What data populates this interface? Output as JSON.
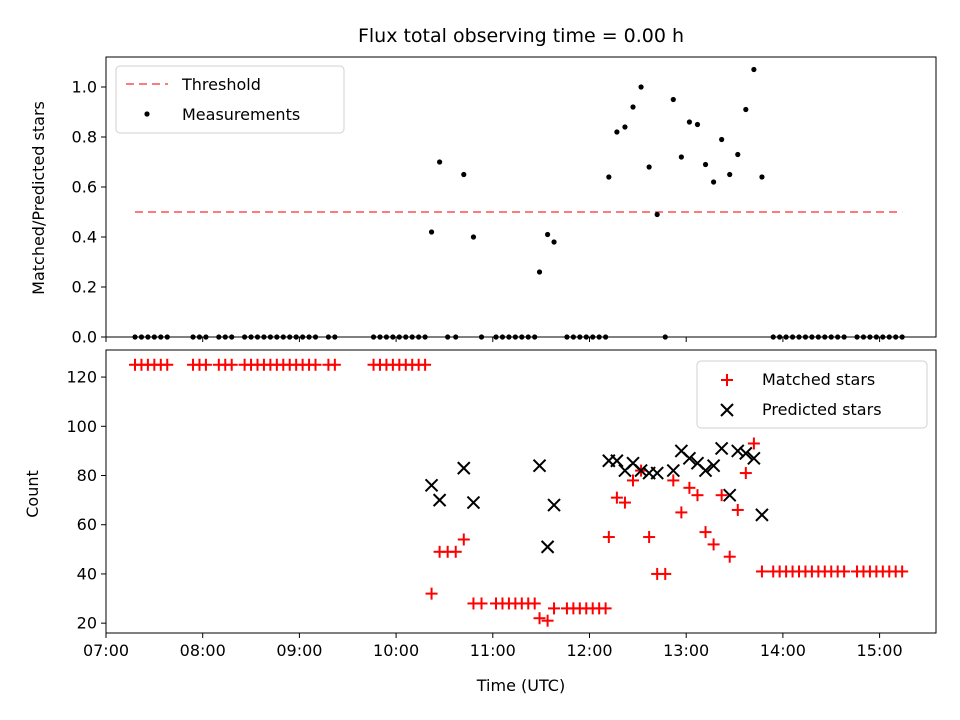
{
  "chart_data": [
    {
      "type": "scatter",
      "title": "Flux total observing time = 0.00 h",
      "xlabel": "",
      "ylabel": "Matched/Predicted stars",
      "xlim": [
        "07:00",
        "15:35"
      ],
      "ylim": [
        0,
        1.12
      ],
      "yticks": [
        0.0,
        0.2,
        0.4,
        0.6,
        0.8,
        1.0
      ],
      "ytick_labels": [
        "0.0",
        "0.2",
        "0.4",
        "0.6",
        "0.8",
        "1.0"
      ],
      "legend_position": "top-left",
      "threshold": {
        "name": "Threshold",
        "value": 0.5,
        "x_start": "07:18",
        "x_end": "15:14",
        "color": "#ff7a7a",
        "style": "dashed"
      },
      "series": [
        {
          "name": "Measurements",
          "color": "#000000",
          "marker": "dot",
          "points": [
            [
              "07:18",
              0
            ],
            [
              "07:22",
              0
            ],
            [
              "07:26",
              0
            ],
            [
              "07:30",
              0
            ],
            [
              "07:34",
              0
            ],
            [
              "07:38",
              0
            ],
            [
              "07:54",
              0
            ],
            [
              "07:58",
              0
            ],
            [
              "08:02",
              0
            ],
            [
              "08:10",
              0
            ],
            [
              "08:14",
              0
            ],
            [
              "08:18",
              0
            ],
            [
              "08:26",
              0
            ],
            [
              "08:30",
              0
            ],
            [
              "08:34",
              0
            ],
            [
              "08:38",
              0
            ],
            [
              "08:42",
              0
            ],
            [
              "08:46",
              0
            ],
            [
              "08:50",
              0
            ],
            [
              "08:54",
              0
            ],
            [
              "08:58",
              0
            ],
            [
              "09:02",
              0
            ],
            [
              "09:06",
              0
            ],
            [
              "09:10",
              0
            ],
            [
              "09:18",
              0
            ],
            [
              "09:22",
              0
            ],
            [
              "09:46",
              0
            ],
            [
              "09:50",
              0
            ],
            [
              "09:54",
              0
            ],
            [
              "09:58",
              0
            ],
            [
              "10:02",
              0
            ],
            [
              "10:06",
              0
            ],
            [
              "10:10",
              0
            ],
            [
              "10:14",
              0
            ],
            [
              "10:18",
              0
            ],
            [
              "10:22",
              0.42
            ],
            [
              "10:27",
              0.7
            ],
            [
              "10:32",
              0
            ],
            [
              "10:37",
              0
            ],
            [
              "10:42",
              0.65
            ],
            [
              "10:48",
              0.4
            ],
            [
              "10:53",
              0
            ],
            [
              "11:02",
              0
            ],
            [
              "11:06",
              0
            ],
            [
              "11:10",
              0
            ],
            [
              "11:14",
              0
            ],
            [
              "11:18",
              0
            ],
            [
              "11:22",
              0
            ],
            [
              "11:26",
              0
            ],
            [
              "11:29",
              0.26
            ],
            [
              "11:34",
              0.41
            ],
            [
              "11:38",
              0.38
            ],
            [
              "11:46",
              0
            ],
            [
              "11:50",
              0
            ],
            [
              "11:54",
              0
            ],
            [
              "11:58",
              0
            ],
            [
              "12:02",
              0
            ],
            [
              "12:06",
              0
            ],
            [
              "12:10",
              0
            ],
            [
              "12:12",
              0.64
            ],
            [
              "12:17",
              0.82
            ],
            [
              "12:22",
              0.84
            ],
            [
              "12:27",
              0.92
            ],
            [
              "12:32",
              1.0
            ],
            [
              "12:37",
              0.68
            ],
            [
              "12:42",
              0.49
            ],
            [
              "12:47",
              0
            ],
            [
              "12:52",
              0.95
            ],
            [
              "12:57",
              0.72
            ],
            [
              "13:02",
              0.86
            ],
            [
              "13:07",
              0.85
            ],
            [
              "13:12",
              0.69
            ],
            [
              "13:17",
              0.62
            ],
            [
              "13:22",
              0.79
            ],
            [
              "13:27",
              0.65
            ],
            [
              "13:32",
              0.73
            ],
            [
              "13:37",
              0.91
            ],
            [
              "13:42",
              1.07
            ],
            [
              "13:47",
              0.64
            ],
            [
              "13:54",
              0
            ],
            [
              "13:58",
              0
            ],
            [
              "14:02",
              0
            ],
            [
              "14:06",
              0
            ],
            [
              "14:10",
              0
            ],
            [
              "14:14",
              0
            ],
            [
              "14:18",
              0
            ],
            [
              "14:22",
              0
            ],
            [
              "14:26",
              0
            ],
            [
              "14:30",
              0
            ],
            [
              "14:34",
              0
            ],
            [
              "14:38",
              0
            ],
            [
              "14:46",
              0
            ],
            [
              "14:50",
              0
            ],
            [
              "14:54",
              0
            ],
            [
              "14:58",
              0
            ],
            [
              "15:02",
              0
            ],
            [
              "15:06",
              0
            ],
            [
              "15:10",
              0
            ],
            [
              "15:14",
              0
            ]
          ]
        }
      ]
    },
    {
      "type": "scatter",
      "title": "",
      "xlabel": "Time (UTC)",
      "ylabel": "Count",
      "xlim": [
        "07:00",
        "15:35"
      ],
      "ylim": [
        16,
        131
      ],
      "yticks": [
        20,
        40,
        60,
        80,
        100,
        120
      ],
      "ytick_labels": [
        "20",
        "40",
        "60",
        "80",
        "100",
        "120"
      ],
      "xticks": [
        "07:00",
        "08:00",
        "09:00",
        "10:00",
        "11:00",
        "12:00",
        "13:00",
        "14:00",
        "15:00"
      ],
      "legend_position": "top-right",
      "series": [
        {
          "name": "Matched stars",
          "color": "#ff0000",
          "marker": "plus",
          "points": [
            [
              "07:18",
              125
            ],
            [
              "07:22",
              125
            ],
            [
              "07:26",
              125
            ],
            [
              "07:30",
              125
            ],
            [
              "07:34",
              125
            ],
            [
              "07:38",
              125
            ],
            [
              "07:54",
              125
            ],
            [
              "07:58",
              125
            ],
            [
              "08:02",
              125
            ],
            [
              "08:10",
              125
            ],
            [
              "08:14",
              125
            ],
            [
              "08:18",
              125
            ],
            [
              "08:26",
              125
            ],
            [
              "08:30",
              125
            ],
            [
              "08:34",
              125
            ],
            [
              "08:38",
              125
            ],
            [
              "08:42",
              125
            ],
            [
              "08:46",
              125
            ],
            [
              "08:50",
              125
            ],
            [
              "08:54",
              125
            ],
            [
              "08:58",
              125
            ],
            [
              "09:02",
              125
            ],
            [
              "09:06",
              125
            ],
            [
              "09:10",
              125
            ],
            [
              "09:18",
              125
            ],
            [
              "09:22",
              125
            ],
            [
              "09:46",
              125
            ],
            [
              "09:50",
              125
            ],
            [
              "09:54",
              125
            ],
            [
              "09:58",
              125
            ],
            [
              "10:02",
              125
            ],
            [
              "10:06",
              125
            ],
            [
              "10:10",
              125
            ],
            [
              "10:14",
              125
            ],
            [
              "10:18",
              125
            ],
            [
              "10:22",
              32
            ],
            [
              "10:27",
              49
            ],
            [
              "10:32",
              49
            ],
            [
              "10:37",
              49
            ],
            [
              "10:42",
              54
            ],
            [
              "10:48",
              28
            ],
            [
              "10:53",
              28
            ],
            [
              "11:02",
              28
            ],
            [
              "11:06",
              28
            ],
            [
              "11:10",
              28
            ],
            [
              "11:14",
              28
            ],
            [
              "11:18",
              28
            ],
            [
              "11:22",
              28
            ],
            [
              "11:26",
              28
            ],
            [
              "11:29",
              22
            ],
            [
              "11:34",
              21
            ],
            [
              "11:38",
              26
            ],
            [
              "11:46",
              26
            ],
            [
              "11:50",
              26
            ],
            [
              "11:54",
              26
            ],
            [
              "11:58",
              26
            ],
            [
              "12:02",
              26
            ],
            [
              "12:06",
              26
            ],
            [
              "12:10",
              26
            ],
            [
              "12:12",
              55
            ],
            [
              "12:17",
              71
            ],
            [
              "12:22",
              69
            ],
            [
              "12:27",
              78
            ],
            [
              "12:32",
              82
            ],
            [
              "12:37",
              55
            ],
            [
              "12:42",
              40
            ],
            [
              "12:47",
              40
            ],
            [
              "12:52",
              78
            ],
            [
              "12:57",
              65
            ],
            [
              "13:02",
              75
            ],
            [
              "13:07",
              72
            ],
            [
              "13:12",
              57
            ],
            [
              "13:17",
              52
            ],
            [
              "13:22",
              72
            ],
            [
              "13:27",
              47
            ],
            [
              "13:32",
              66
            ],
            [
              "13:37",
              81
            ],
            [
              "13:42",
              93
            ],
            [
              "13:47",
              41
            ],
            [
              "13:54",
              41
            ],
            [
              "13:58",
              41
            ],
            [
              "14:02",
              41
            ],
            [
              "14:06",
              41
            ],
            [
              "14:10",
              41
            ],
            [
              "14:14",
              41
            ],
            [
              "14:18",
              41
            ],
            [
              "14:22",
              41
            ],
            [
              "14:26",
              41
            ],
            [
              "14:30",
              41
            ],
            [
              "14:34",
              41
            ],
            [
              "14:38",
              41
            ],
            [
              "14:46",
              41
            ],
            [
              "14:50",
              41
            ],
            [
              "14:54",
              41
            ],
            [
              "14:58",
              41
            ],
            [
              "15:02",
              41
            ],
            [
              "15:06",
              41
            ],
            [
              "15:10",
              41
            ],
            [
              "15:14",
              41
            ]
          ]
        },
        {
          "name": "Predicted stars",
          "color": "#000000",
          "marker": "x",
          "points": [
            [
              "10:22",
              76
            ],
            [
              "10:27",
              70
            ],
            [
              "10:42",
              83
            ],
            [
              "10:48",
              69
            ],
            [
              "11:29",
              84
            ],
            [
              "11:34",
              51
            ],
            [
              "11:38",
              68
            ],
            [
              "12:12",
              86
            ],
            [
              "12:17",
              86
            ],
            [
              "12:22",
              82
            ],
            [
              "12:27",
              85
            ],
            [
              "12:32",
              82
            ],
            [
              "12:37",
              81
            ],
            [
              "12:42",
              81
            ],
            [
              "12:52",
              82
            ],
            [
              "12:57",
              90
            ],
            [
              "13:02",
              87
            ],
            [
              "13:07",
              85
            ],
            [
              "13:12",
              82
            ],
            [
              "13:17",
              84
            ],
            [
              "13:22",
              91
            ],
            [
              "13:27",
              72
            ],
            [
              "13:32",
              90
            ],
            [
              "13:37",
              89
            ],
            [
              "13:42",
              87
            ],
            [
              "13:47",
              64
            ]
          ]
        }
      ]
    }
  ]
}
